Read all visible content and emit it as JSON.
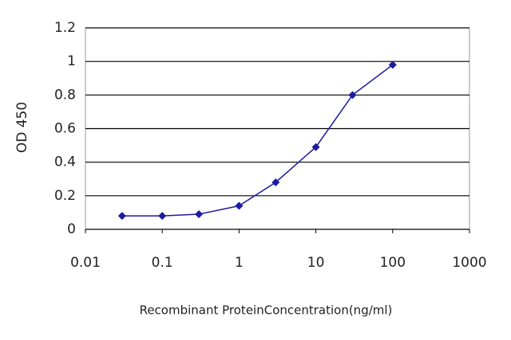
{
  "chart_data": {
    "type": "line",
    "x_label": "Recombinant ProteinConcentration(ng/ml)",
    "y_label": "OD 450",
    "x": [
      0.03,
      0.1,
      0.3,
      1,
      3,
      10,
      30,
      100
    ],
    "values": [
      0.08,
      0.08,
      0.09,
      0.14,
      0.28,
      0.49,
      0.8,
      0.98
    ],
    "color": "#1c1ca0",
    "xscale": "log",
    "xlim": [
      0.01,
      1000
    ],
    "xticks": [
      0.01,
      0.1,
      1,
      10,
      100,
      1000
    ],
    "ylim": [
      0,
      1.2
    ],
    "yticks": [
      0,
      0.2,
      0.4,
      0.6,
      0.8,
      1,
      1.2
    ],
    "grid": true
  }
}
